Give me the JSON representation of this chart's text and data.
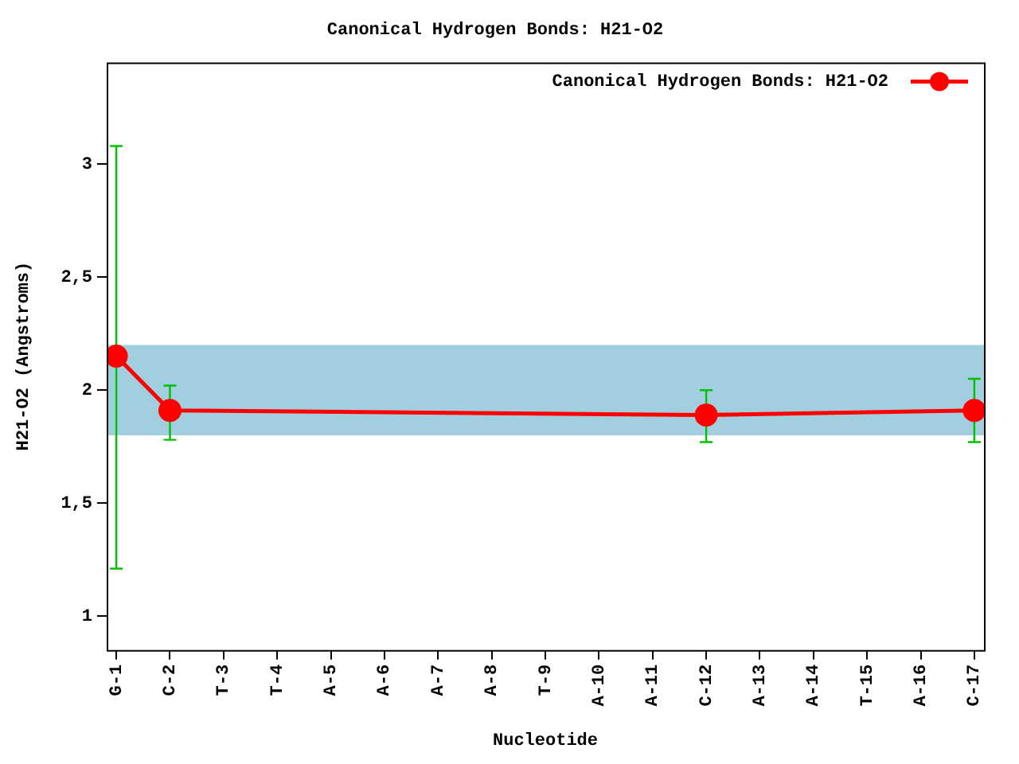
{
  "chart_data": {
    "type": "line",
    "title": "Canonical Hydrogen Bonds: H21-O2",
    "xlabel": "Nucleotide",
    "ylabel": "H21-O2 (Angstroms)",
    "categories": [
      "G-1",
      "C-2",
      "T-3",
      "T-4",
      "A-5",
      "A-6",
      "A-7",
      "A-8",
      "T-9",
      "A-10",
      "A-11",
      "C-12",
      "A-13",
      "A-14",
      "T-15",
      "A-16",
      "C-17"
    ],
    "series": [
      {
        "name": "Canonical Hydrogen Bonds: H21-O2",
        "color": "#ff0000",
        "values": [
          2.15,
          1.91,
          null,
          null,
          null,
          null,
          null,
          null,
          null,
          null,
          null,
          1.89,
          null,
          null,
          null,
          null,
          1.91
        ],
        "errors": [
          [
            1.21,
            3.08
          ],
          [
            1.78,
            2.02
          ],
          null,
          null,
          null,
          null,
          null,
          null,
          null,
          null,
          null,
          [
            1.77,
            2.0
          ],
          null,
          null,
          null,
          null,
          [
            1.77,
            2.05
          ]
        ]
      }
    ],
    "bands": [
      {
        "axis": "y",
        "from": 1.8,
        "to": 2.2,
        "color": "#a2cfdf"
      }
    ],
    "ylim": [
      0.85,
      3.45
    ],
    "yticks": [
      1,
      {
        "value": 1.5,
        "label": "1,5"
      },
      2,
      {
        "value": 2.5,
        "label": "2,5"
      },
      3
    ],
    "grid": false,
    "legend": "top right",
    "marker": "circle",
    "line_style": "solid"
  }
}
